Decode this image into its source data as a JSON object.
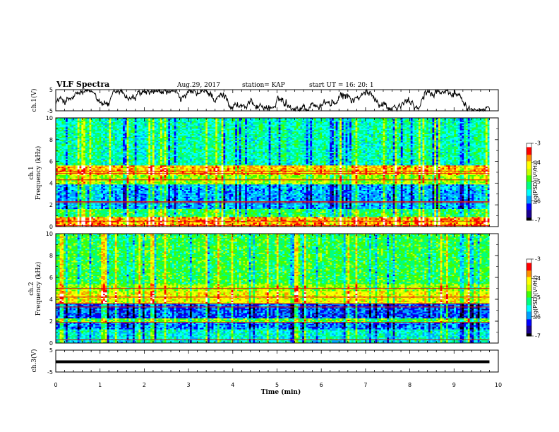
{
  "header": {
    "title": "VLF Spectra",
    "date": "Aug.29, 2017",
    "station": "station= KAP",
    "start": "start  UT =   16: 20: 1"
  },
  "chart_data": [
    {
      "type": "line",
      "name": "ch1-waveform",
      "ylabel": "ch.1(V)",
      "ylim": [
        -5,
        5
      ],
      "yticks": [
        "5",
        "-5"
      ],
      "xlim": [
        0,
        10
      ]
    },
    {
      "type": "heatmap",
      "name": "ch1-spectrogram",
      "ylabel": "Frequency (kHz)",
      "ylabel2": "ch.1",
      "ylim": [
        0,
        10
      ],
      "yticks": [
        "0",
        "2",
        "4",
        "6",
        "8",
        "10"
      ],
      "xlim": [
        0,
        10
      ],
      "colorbar": {
        "label": "log(PSD)(V²/Hz)",
        "range": [
          -7,
          -3
        ],
        "ticks": [
          "-3",
          "-4",
          "-5",
          "-6",
          "-7"
        ]
      }
    },
    {
      "type": "heatmap",
      "name": "ch2-spectrogram",
      "ylabel": "Frequency (kHz)",
      "ylabel2": "ch.2",
      "ylim": [
        0,
        10
      ],
      "yticks": [
        "0",
        "2",
        "4",
        "6",
        "8",
        "10"
      ],
      "xlim": [
        0,
        10
      ],
      "colorbar": {
        "label": "log(PSD)(V²/Hz)",
        "range": [
          -7,
          -3
        ],
        "ticks": [
          "-3",
          "-4",
          "-5",
          "-6",
          "-7"
        ]
      }
    },
    {
      "type": "line",
      "name": "ch3-waveform",
      "ylabel": "ch.3(V)",
      "ylim": [
        -5,
        5
      ],
      "yticks": [
        "5",
        "-5"
      ],
      "xlim": [
        0,
        10
      ],
      "constant_value": 0
    }
  ],
  "xaxis": {
    "label": "Time (min)",
    "ticks": [
      "0",
      "1",
      "2",
      "3",
      "4",
      "5",
      "6",
      "7",
      "8",
      "9",
      "10"
    ],
    "data_end": 9.8
  },
  "colors": {
    "axis": "#000000",
    "colormap": [
      "#000000",
      "#1a0090",
      "#0000ff",
      "#00a0ff",
      "#00ffff",
      "#00ff80",
      "#40ff00",
      "#c8ff00",
      "#ffff00",
      "#ff9000",
      "#ff0000",
      "#ffffff"
    ]
  }
}
